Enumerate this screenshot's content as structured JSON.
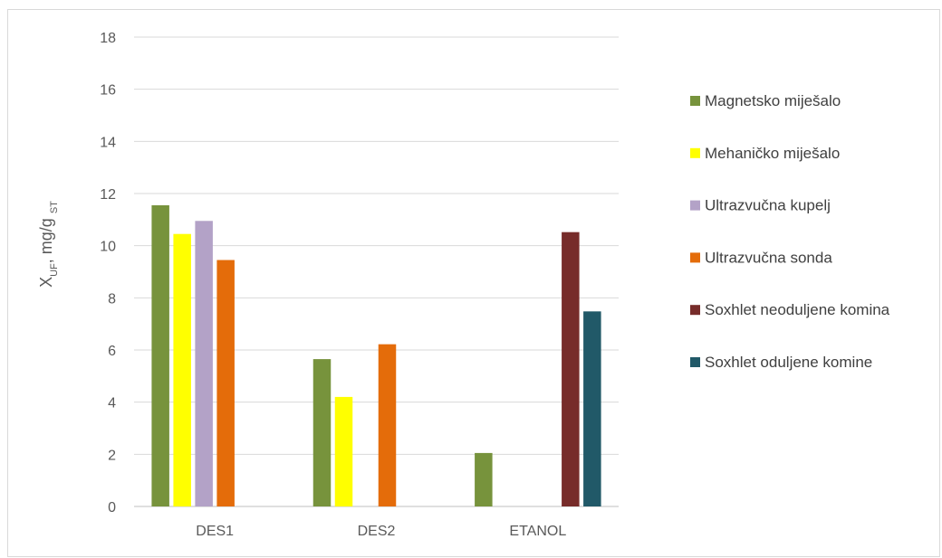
{
  "chart_data": {
    "type": "bar",
    "categories": [
      "DES1",
      "DES2",
      "ETANOL"
    ],
    "series": [
      {
        "name": "Magnetsko miješalo",
        "color": "#77933c",
        "values": [
          11.55,
          5.65,
          2.05
        ]
      },
      {
        "name": "Mehaničko miješalo",
        "color": "#ffff00",
        "values": [
          10.45,
          4.2,
          null
        ]
      },
      {
        "name": "Ultrazvučna kupelj",
        "color": "#b3a2c7",
        "values": [
          10.95,
          null,
          null
        ]
      },
      {
        "name": "Ultrazvučna sonda",
        "color": "#e46c0a",
        "values": [
          9.45,
          6.22,
          null
        ]
      },
      {
        "name": "Soxhlet neoduljene komina",
        "color": "#772c2a",
        "values": [
          null,
          null,
          10.52
        ]
      },
      {
        "name": "Soxhlet oduljene komine",
        "color": "#215968",
        "values": [
          null,
          null,
          7.48
        ]
      }
    ],
    "ylabel": {
      "main": "X",
      "sub": "UF",
      "mid": ", mg/g ",
      "sub2": "ST"
    },
    "ylim": [
      0,
      18
    ],
    "yticks": [
      0,
      2,
      4,
      6,
      8,
      10,
      12,
      14,
      16,
      18
    ],
    "grid": true,
    "legend_position": "right"
  }
}
